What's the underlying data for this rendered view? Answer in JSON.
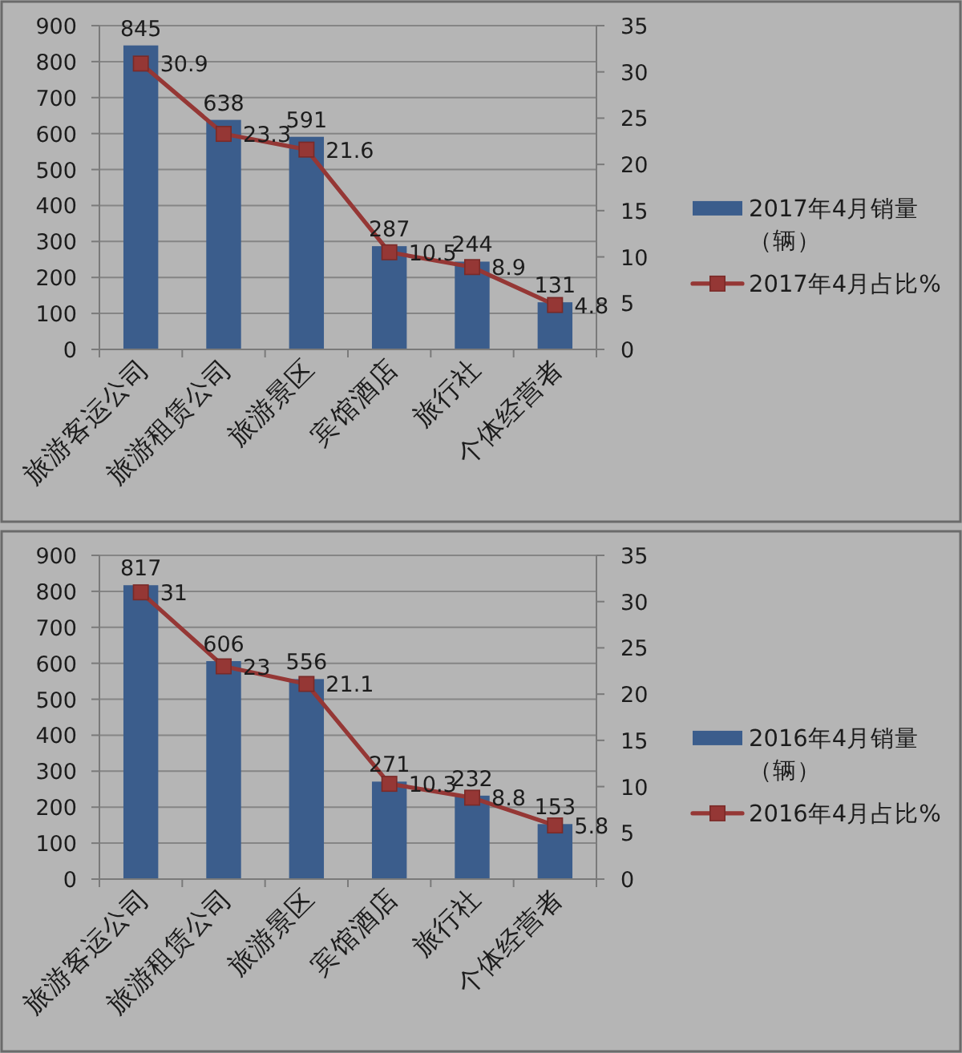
{
  "chart_data": [
    {
      "type": "bar",
      "categories": [
        "旅游客运公司",
        "旅游租赁公司",
        "旅游景区",
        "宾馆酒店",
        "旅行社",
        "个体经营者"
      ],
      "series": [
        {
          "name": "2017年4月销量（辆）",
          "color": "#3b5d8c",
          "values": [
            845,
            638,
            591,
            287,
            244,
            131
          ]
        },
        {
          "name": "2017年4月占比%",
          "type": "line",
          "axis": "y2",
          "color": "#953735",
          "marker": "square",
          "values": [
            30.9,
            23.3,
            21.6,
            10.5,
            8.9,
            4.8
          ]
        }
      ],
      "ylim": [
        0,
        900
      ],
      "yticks": [
        0,
        100,
        200,
        300,
        400,
        500,
        600,
        700,
        800,
        900
      ],
      "y2lim": [
        0,
        35
      ],
      "y2ticks": [
        0,
        5,
        10,
        15,
        20,
        25,
        30,
        35
      ],
      "grid": "y",
      "legend": "right",
      "data_labels": true
    },
    {
      "type": "bar",
      "categories": [
        "旅游客运公司",
        "旅游租赁公司",
        "旅游景区",
        "宾馆酒店",
        "旅行社",
        "个体经营者"
      ],
      "series": [
        {
          "name": "2016年4月销量（辆）",
          "color": "#3b5d8c",
          "values": [
            817,
            606,
            556,
            271,
            232,
            153
          ]
        },
        {
          "name": "2016年4月占比%",
          "type": "line",
          "axis": "y2",
          "color": "#953735",
          "marker": "square",
          "values": [
            31,
            23,
            21.1,
            10.3,
            8.8,
            5.8
          ]
        }
      ],
      "ylim": [
        0,
        900
      ],
      "yticks": [
        0,
        100,
        200,
        300,
        400,
        500,
        600,
        700,
        800,
        900
      ],
      "y2lim": [
        0,
        35
      ],
      "y2ticks": [
        0,
        5,
        10,
        15,
        20,
        25,
        30,
        35
      ],
      "grid": "y",
      "legend": "right",
      "data_labels": true
    }
  ]
}
